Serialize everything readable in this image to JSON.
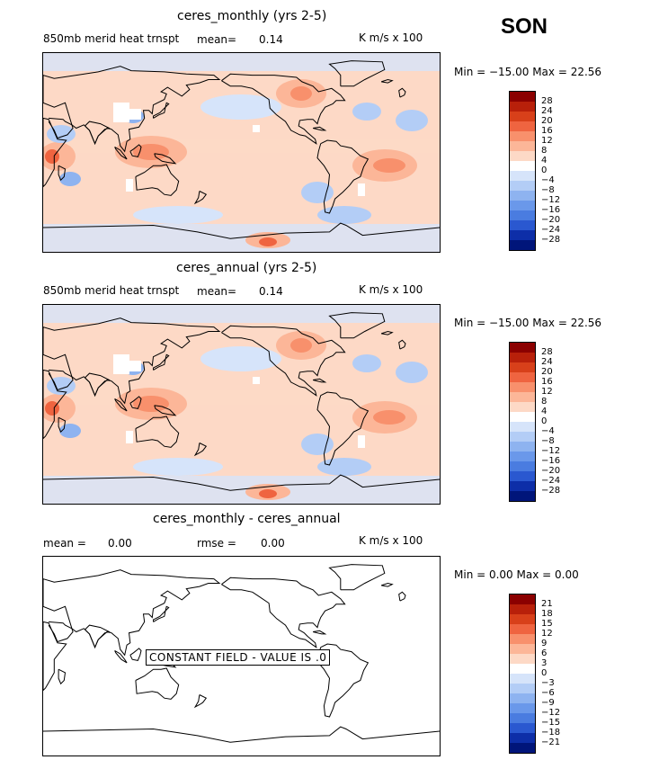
{
  "season": "SON",
  "panels": [
    {
      "title": "ceres_monthly (yrs 2-5)",
      "variable": "850mb merid heat trnspt",
      "mean_label": "mean=",
      "mean_value": "0.14",
      "units": "K m/s x 100",
      "minmax": "Min = −15.00 Max = 22.56",
      "levels": [
        "28",
        "24",
        "20",
        "16",
        "12",
        "8",
        "4",
        "0",
        "−4",
        "−8",
        "−12",
        "−16",
        "−20",
        "−24",
        "−28"
      ]
    },
    {
      "title": "ceres_annual (yrs 2-5)",
      "variable": "850mb merid heat trnspt",
      "mean_label": "mean=",
      "mean_value": "0.14",
      "units": "K m/s x 100",
      "minmax": "Min = −15.00 Max = 22.56",
      "levels": [
        "28",
        "24",
        "20",
        "16",
        "12",
        "8",
        "4",
        "0",
        "−4",
        "−8",
        "−12",
        "−16",
        "−20",
        "−24",
        "−28"
      ]
    },
    {
      "title": "ceres_monthly - ceres_annual",
      "mean_label": "mean =",
      "mean_value": "0.00",
      "rmse_label": "rmse =",
      "rmse_value": "0.00",
      "units": "K m/s x 100",
      "minmax": "Min =  0.00 Max =  0.00",
      "constant_field": "CONSTANT FIELD - VALUE IS .0",
      "levels": [
        "21",
        "18",
        "15",
        "12",
        "9",
        "6",
        "3",
        "0",
        "−3",
        "−6",
        "−9",
        "−12",
        "−15",
        "−18",
        "−21"
      ]
    }
  ],
  "colors": {
    "scale": [
      "#8b0000",
      "#b8200a",
      "#d8401a",
      "#ef6440",
      "#f8906c",
      "#fcb698",
      "#fdd9c6",
      "#ffffff",
      "#d6e4fa",
      "#b3cdf6",
      "#8eb3f0",
      "#6a98ea",
      "#4a7ce0",
      "#2a58d0",
      "#0d2ea8",
      "#00157a"
    ]
  },
  "chart_data": [
    {
      "type": "heatmap",
      "title": "ceres_monthly (yrs 2-5)",
      "field": "850mb merid heat trnspt",
      "units": "K m/s x 100",
      "mean": 0.14,
      "min": -15.0,
      "max": 22.56,
      "contour_levels": [
        -28,
        -24,
        -20,
        -16,
        -12,
        -8,
        -4,
        0,
        4,
        8,
        12,
        16,
        20,
        24,
        28
      ]
    },
    {
      "type": "heatmap",
      "title": "ceres_annual (yrs 2-5)",
      "field": "850mb merid heat trnspt",
      "units": "K m/s x 100",
      "mean": 0.14,
      "min": -15.0,
      "max": 22.56,
      "contour_levels": [
        -28,
        -24,
        -20,
        -16,
        -12,
        -8,
        -4,
        0,
        4,
        8,
        12,
        16,
        20,
        24,
        28
      ]
    },
    {
      "type": "heatmap",
      "title": "ceres_monthly - ceres_annual",
      "units": "K m/s x 100",
      "mean": 0.0,
      "rmse": 0.0,
      "min": 0.0,
      "max": 0.0,
      "contour_levels": [
        -21,
        -18,
        -15,
        -12,
        -9,
        -6,
        -3,
        0,
        3,
        6,
        9,
        12,
        15,
        18,
        21
      ]
    }
  ]
}
